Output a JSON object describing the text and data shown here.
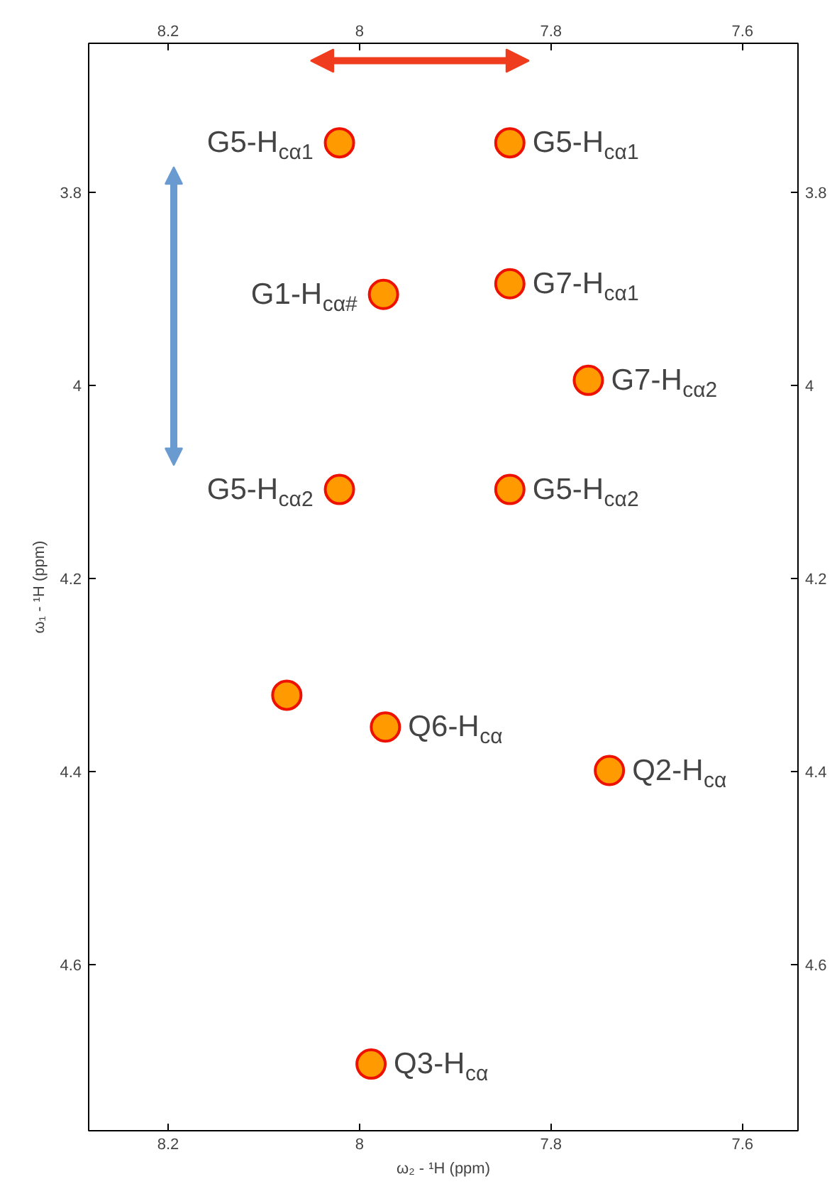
{
  "chart_data": {
    "type": "scatter",
    "xlabel": "ω₂ - ¹H (ppm)",
    "ylabel": "ω₁ - ¹H (ppm)",
    "xlim": [
      8.283,
      7.542
    ],
    "ylim": [
      4.772,
      3.646
    ],
    "xticks": [
      8.2,
      8.0,
      7.8,
      7.6
    ],
    "yticks": [
      3.8,
      4.0,
      4.2,
      4.4,
      4.6
    ],
    "x2lim": [
      8.283,
      7.542
    ],
    "x2ticks": [
      8.2,
      8.0,
      7.8,
      7.6
    ],
    "y2lim": [
      4.772,
      3.646
    ],
    "y2ticks": [
      3.8,
      4.0,
      4.2,
      4.4,
      4.6
    ],
    "grid": false,
    "marker": "circle",
    "series": [
      {
        "color": "#ff9a00",
        "x": [
          8.021,
          8.021,
          7.975,
          7.843,
          7.843,
          7.843,
          7.761,
          7.973,
          8.076,
          7.739,
          7.988
        ],
        "values": [
          3.749,
          4.108,
          3.906,
          3.749,
          3.895,
          4.108,
          3.995,
          4.354,
          4.321,
          4.399,
          4.703
        ],
        "value_labels": [
          "G5-H$_{cα1}$",
          "G5-H$_{cα2}$",
          "G1-H$_{cα#}$",
          "G5-H$_{cα1}$",
          "G7-H$_{cα1}$",
          "G5-H$_{cα2}$",
          "G7-H$_{cα2}$",
          "Q6-H$_{cα}$",
          null,
          "Q2-H$_{cα}$",
          "Q3-H$_{cα}$"
        ]
      }
    ]
  }
}
